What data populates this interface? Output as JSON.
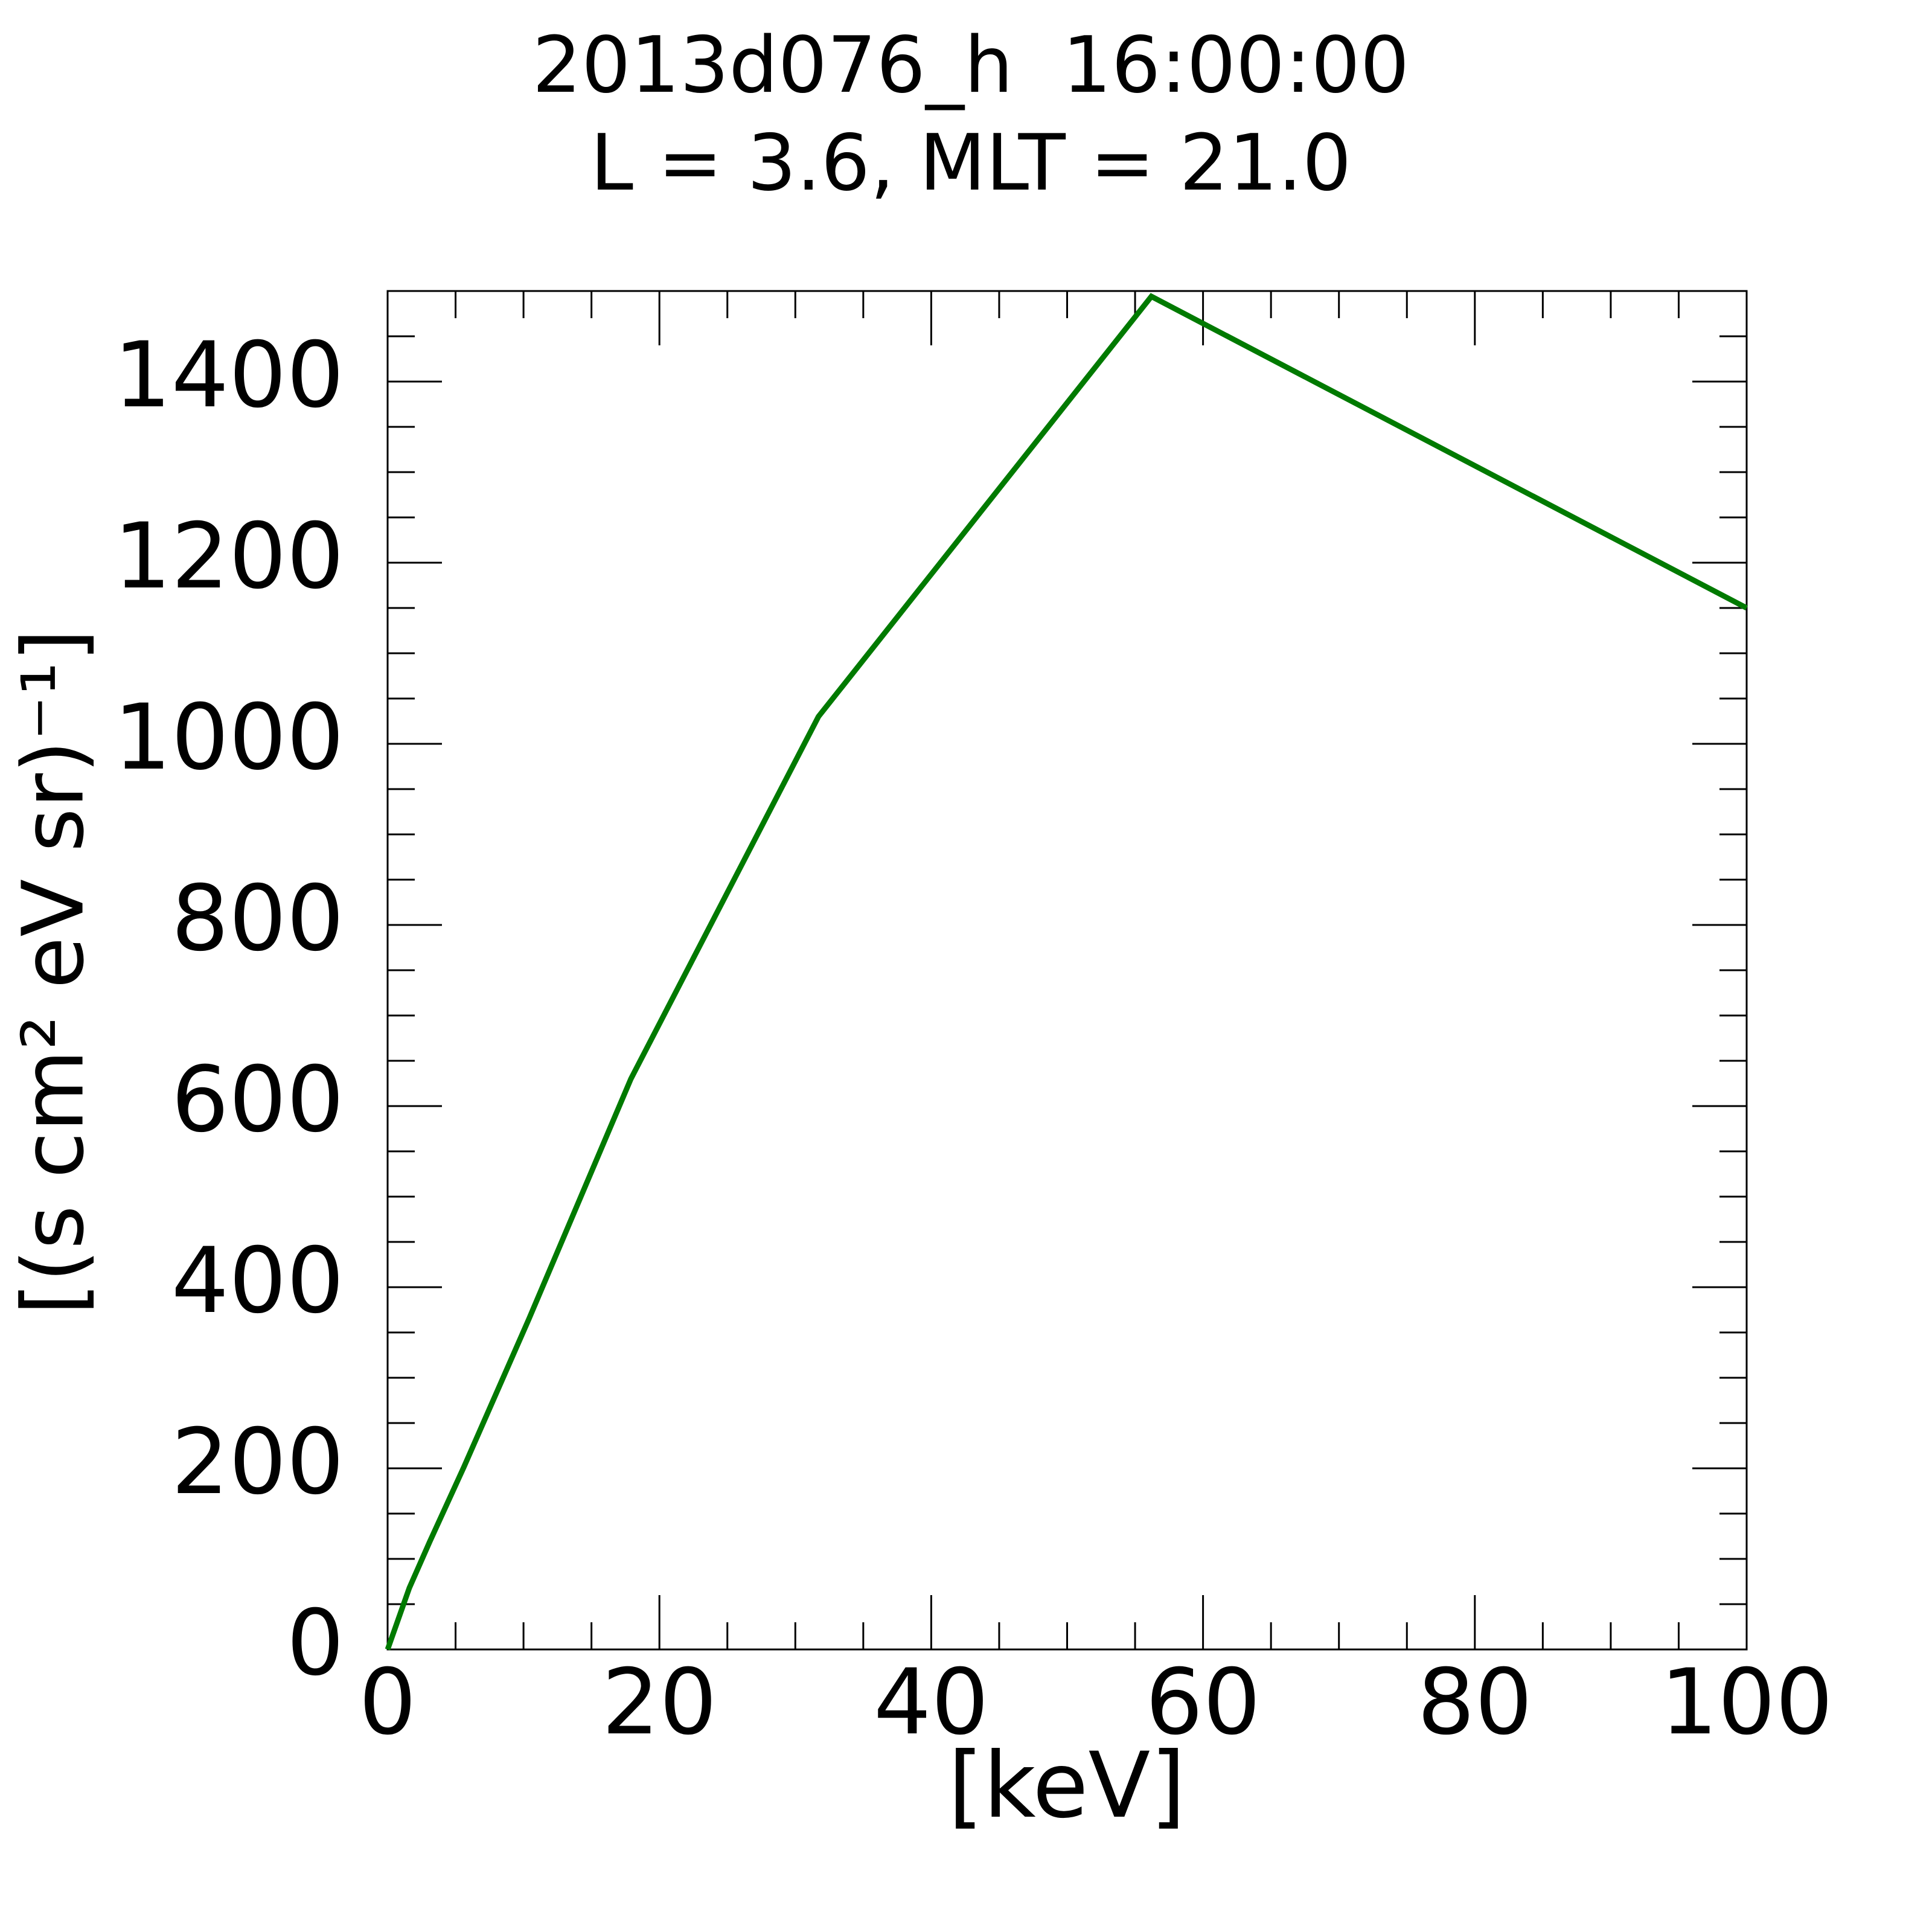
{
  "chart_data": {
    "type": "line",
    "title": "2013d076_h  16:00:00",
    "subtitle": "L = 3.6, MLT = 21.0",
    "x_label": "[keV]",
    "y_label": "[(s cm² eV sr)⁻¹]",
    "series": [
      {
        "color": "#007a00",
        "x": [
          0,
          1.6,
          3.1,
          5.6,
          10.4,
          17.9,
          31.7,
          56.2,
          100
        ],
        "values": [
          0,
          68,
          119,
          201,
          365,
          630,
          1030,
          1494,
          1150
        ]
      }
    ],
    "xlim": [
      0,
      100
    ],
    "xticks": [
      0,
      20,
      40,
      60,
      80,
      100
    ],
    "ylim": [
      0,
      1500
    ],
    "yticks": [
      0,
      200,
      400,
      600,
      800,
      1000,
      1200,
      1400
    ]
  }
}
